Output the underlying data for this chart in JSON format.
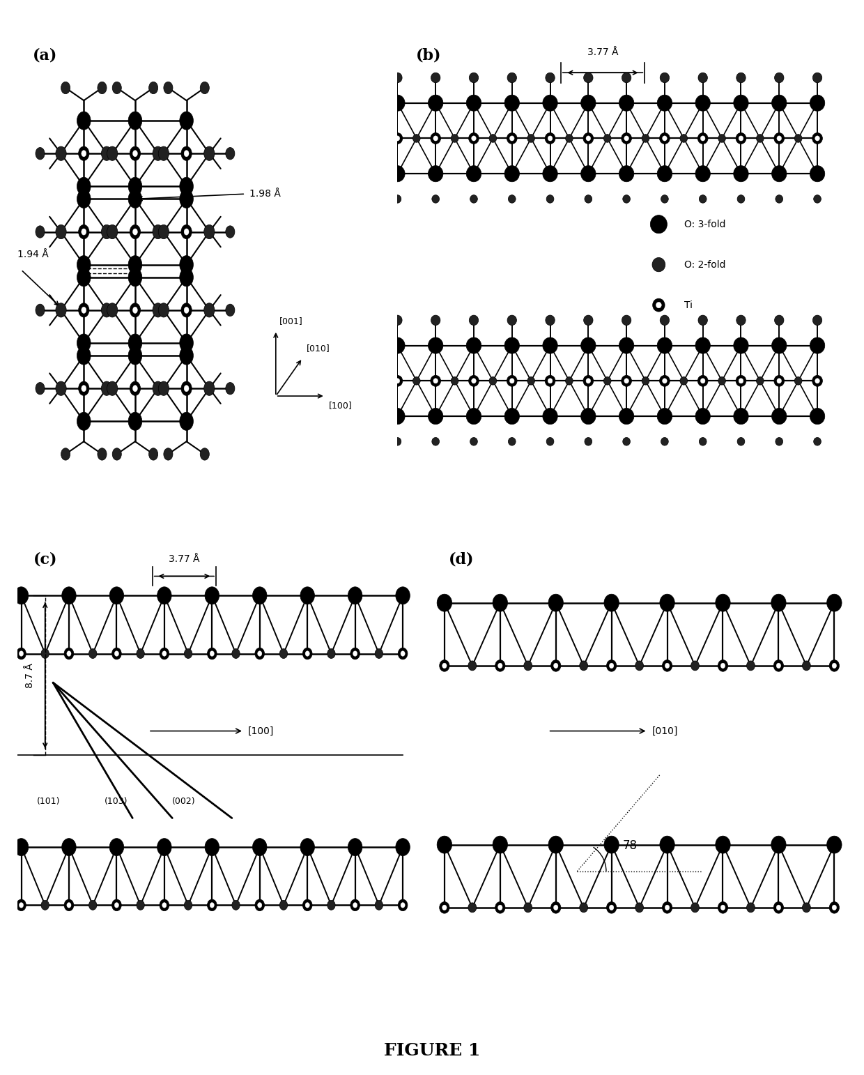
{
  "title": "FIGURE 1",
  "title_fontsize": 18,
  "background_color": "#ffffff",
  "panel_labels": [
    "(a)",
    "(b)",
    "(c)",
    "(d)"
  ],
  "panel_label_fontsize": 16,
  "ann_a": {
    "bond_198": "1.98 Å",
    "bond_194": "1.94 Å",
    "dir_001": "[001]",
    "dir_010": "[010]",
    "dir_100": "[100]"
  },
  "ann_b": {
    "spacing_377": "3.77 Å",
    "legend_o3": "O: 3-fold",
    "legend_o2": "O: 2-fold",
    "legend_ti": "Ti"
  },
  "ann_c": {
    "spacing_377": "3.77 Å",
    "height_87": "8.7 Å",
    "dir_100": "[100]",
    "plane_101": "(101)",
    "plane_103": "(103)",
    "plane_002": "(002)"
  },
  "ann_d": {
    "dir_010": "[010]",
    "angle_78": "78"
  }
}
